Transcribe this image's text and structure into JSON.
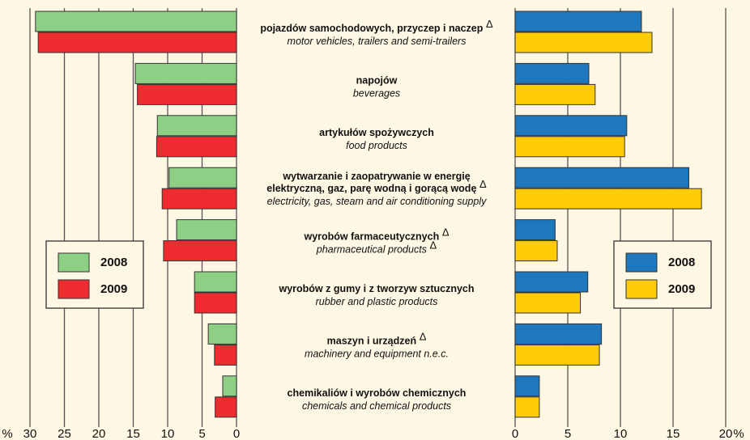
{
  "categories": [
    {
      "pl": [
        "pojazdów samochodowych, przyczep i naczep Δ"
      ],
      "en": "motor vehicles, trailers and semi-trailers"
    },
    {
      "pl": [
        "napojów"
      ],
      "en": "beverages"
    },
    {
      "pl": [
        "artykułów spożywczych"
      ],
      "en": "food products"
    },
    {
      "pl": [
        "wytwarzanie i zaopatrywanie w energię",
        "elektryczną, gaz, parę wodną i gorącą wodę Δ"
      ],
      "en": "electricity, gas, steam and air conditioning supply"
    },
    {
      "pl": [
        "wyrobów farmaceutycznych Δ"
      ],
      "en": "pharmaceutical products Δ"
    },
    {
      "pl": [
        "wyrobów z gumy i z tworzyw sztucznych"
      ],
      "en": "rubber and plastic products"
    },
    {
      "pl": [
        "maszyn i urządzeń Δ"
      ],
      "en": "machinery and equipment n.e.c."
    },
    {
      "pl": [
        "chemikaliów i wyrobów chemicznych"
      ],
      "en": "chemicals and chemical products"
    }
  ],
  "chart_data": [
    {
      "type": "bar",
      "orientation": "horizontal",
      "x_reversed": true,
      "unit": "%",
      "xlim": [
        0,
        30
      ],
      "xticks": [
        0,
        5,
        10,
        15,
        20,
        25,
        30
      ],
      "grid": true,
      "legend": "left",
      "series": [
        {
          "name": "2008",
          "color": "#8dcf85",
          "values": [
            29.2,
            14.7,
            11.5,
            9.8,
            8.7,
            6.1,
            4.1,
            2.0
          ]
        },
        {
          "name": "2009",
          "color": "#ee2b2f",
          "values": [
            28.8,
            14.4,
            11.6,
            10.8,
            10.6,
            6.1,
            3.2,
            3.1
          ]
        }
      ]
    },
    {
      "type": "bar",
      "orientation": "horizontal",
      "x_reversed": false,
      "unit": "%",
      "xlim": [
        0,
        20
      ],
      "xticks": [
        0,
        5,
        10,
        15,
        20
      ],
      "grid": true,
      "legend": "right",
      "series": [
        {
          "name": "2008",
          "color": "#1f77bd",
          "values": [
            12.0,
            7.0,
            10.6,
            16.5,
            3.8,
            6.9,
            8.2,
            2.3
          ]
        },
        {
          "name": "2009",
          "color": "#ffcb05",
          "values": [
            13.0,
            7.6,
            10.4,
            17.7,
            4.0,
            6.2,
            8.0,
            2.3
          ]
        }
      ]
    }
  ]
}
